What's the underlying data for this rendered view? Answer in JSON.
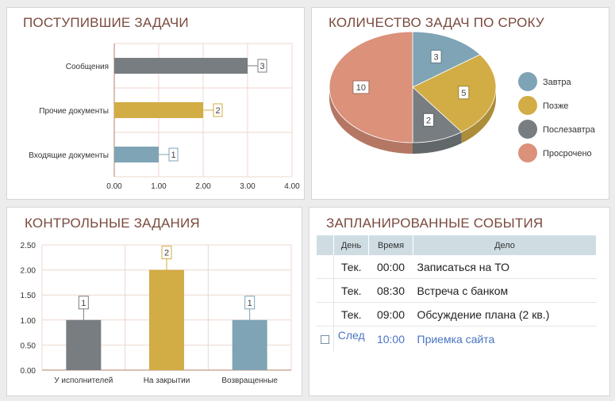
{
  "panels": {
    "incoming": {
      "title": "ПОСТУПИВШИЕ ЗАДАЧИ"
    },
    "by_term": {
      "title": "КОЛИЧЕСТВО ЗАДАЧ ПО СРОКУ"
    },
    "control": {
      "title": "КОНТРОЛЬНЫЕ ЗАДАНИЯ"
    },
    "events": {
      "title": "ЗАПЛАНИРОВАННЫЕ СОБЫТИЯ"
    }
  },
  "chart_data": [
    {
      "type": "bar",
      "orientation": "horizontal",
      "categories": [
        "Сообщения",
        "Прочие документы",
        "Входящие документы"
      ],
      "values": [
        3,
        2,
        1
      ],
      "data_labels": [
        "3",
        "2",
        "1"
      ],
      "colors": [
        "#777d81",
        "#d2ac45",
        "#7ea4b5"
      ],
      "xlim": [
        0,
        4
      ],
      "x_ticks": [
        "0.00",
        "1.00",
        "2.00",
        "3.00",
        "4.00"
      ],
      "grid": true
    },
    {
      "type": "pie",
      "labels": [
        "Завтра",
        "Позже",
        "Послезавтра",
        "Просрочено"
      ],
      "values": [
        3,
        5,
        2,
        10
      ],
      "data_labels": [
        "3",
        "5",
        "2",
        "10"
      ],
      "colors": [
        "#7ea4b5",
        "#d2ac45",
        "#777d81",
        "#db917a"
      ],
      "legend": "right"
    },
    {
      "type": "bar",
      "orientation": "vertical",
      "categories": [
        "У исполнителей",
        "На закрытии",
        "Возвращенные"
      ],
      "values": [
        1,
        2,
        1
      ],
      "data_labels": [
        "1",
        "2",
        "1"
      ],
      "colors": [
        "#777d81",
        "#d2ac45",
        "#7ea4b5"
      ],
      "ylim": [
        0,
        2.5
      ],
      "y_ticks": [
        "0.00",
        "0.50",
        "1.00",
        "1.50",
        "2.00",
        "2.50"
      ],
      "grid": true
    }
  ],
  "events_table": {
    "headers": {
      "day": "День",
      "time": "Время",
      "task": "Дело"
    },
    "rows": [
      {
        "day": "Тек.",
        "time": "00:00",
        "task": "Записаться на ТО"
      },
      {
        "day": "Тек.",
        "time": "08:30",
        "task": "Встреча с банком"
      },
      {
        "day": "Тек.",
        "time": "09:00",
        "task": "Обсуждение плана (2 кв.)"
      }
    ],
    "next_row": {
      "day": "След",
      "time": "10:00",
      "task": "Приемка сайта"
    },
    "colors": {
      "header_bg": "#cfdde3",
      "next_text": "#4a74c4"
    }
  }
}
